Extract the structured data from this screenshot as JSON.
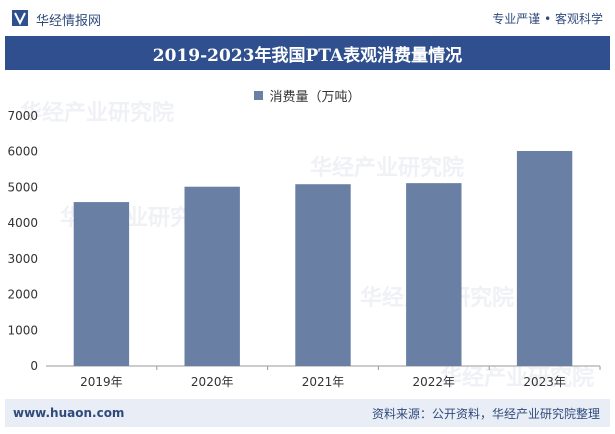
{
  "header": {
    "brand": "华经情报网",
    "tagline": "专业严谨 • 客观科学"
  },
  "chart_data": {
    "type": "bar",
    "title": "2019-2023年我国PTA表观消费量情况",
    "categories": [
      "2019年",
      "2020年",
      "2021年",
      "2022年",
      "2023年"
    ],
    "series": [
      {
        "name": "消费量（万吨）",
        "values": [
          4590,
          5020,
          5090,
          5120,
          6020
        ]
      }
    ],
    "ylim": [
      0,
      7000
    ],
    "yticks": [
      0,
      1000,
      2000,
      3000,
      4000,
      5000,
      6000,
      7000
    ],
    "legend_position": "top-center",
    "grid": false,
    "colors": {
      "bar": "#6a7fa4",
      "title_bg": "#2f4f8e"
    }
  },
  "footer": {
    "url": "www.huaon.com",
    "source": "资料来源：公开资料，华经产业研究院整理"
  },
  "watermark": {
    "text": "华经产业研究院"
  }
}
